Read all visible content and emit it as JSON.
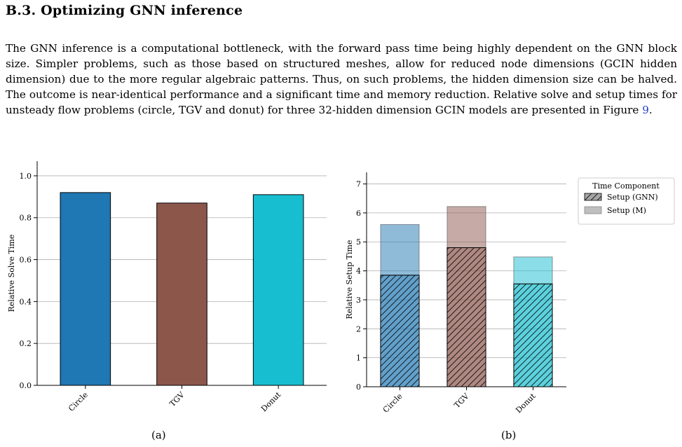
{
  "section": {
    "heading": "B.3. Optimizing GNN inference"
  },
  "body": {
    "paragraph": "The GNN inference is a computational bottleneck, with the forward pass time being highly dependent on the GNN block size. Simpler problems, such as those based on structured meshes, allow for reduced node dimensions (GCIN hidden dimension) due to the more regular algebraic patterns. Thus, on such problems, the hidden dimension size can be halved. The outcome is near-identical performance and a significant time and memory reduction. Relative solve and setup times for unsteady flow problems (circle, TGV and donut) for three 32-hidden dimension GCIN models are presented in Figure",
    "figure_ref": "9",
    "paragraph_end": "."
  },
  "captions": {
    "a": "(a)",
    "b": "(b)"
  },
  "chart_data": [
    {
      "type": "bar",
      "categories": [
        "Circle",
        "TGV",
        "Donut"
      ],
      "values": [
        0.92,
        0.87,
        0.91
      ],
      "colors": [
        "#1f77b4",
        "#8c564b",
        "#17becf"
      ],
      "title": "",
      "xlabel": "",
      "ylabel": "Relative Solve Time",
      "ylim": [
        0,
        1.07
      ],
      "yticks": [
        0.0,
        0.2,
        0.4,
        0.6,
        0.8,
        1.0
      ],
      "ytick_labels": [
        "0.0",
        "0.2",
        "0.4",
        "0.6",
        "0.8",
        "1.0"
      ],
      "grid": "horizontal",
      "legend": "none"
    },
    {
      "type": "bar",
      "stacked": true,
      "categories": [
        "Circle",
        "TGV",
        "Donut"
      ],
      "colors": [
        "#1f77b4",
        "#8c564b",
        "#17becf"
      ],
      "series": [
        {
          "name": "Setup (GNN)",
          "values": [
            3.85,
            4.8,
            3.55
          ],
          "style": "hatched, alpha 0.7"
        },
        {
          "name": "Setup (M)",
          "values": [
            1.75,
            1.42,
            0.93
          ],
          "style": "solid, alpha 0.5"
        }
      ],
      "title": "",
      "xlabel": "",
      "ylabel": "Relative Setup Time",
      "ylim": [
        0,
        7.4
      ],
      "yticks": [
        0,
        1,
        2,
        3,
        4,
        5,
        6,
        7
      ],
      "ytick_labels": [
        "0",
        "1",
        "2",
        "3",
        "4",
        "5",
        "6",
        "7"
      ],
      "grid": "horizontal",
      "legend": {
        "title": "Time Component",
        "placement": "outside right, top"
      }
    }
  ]
}
